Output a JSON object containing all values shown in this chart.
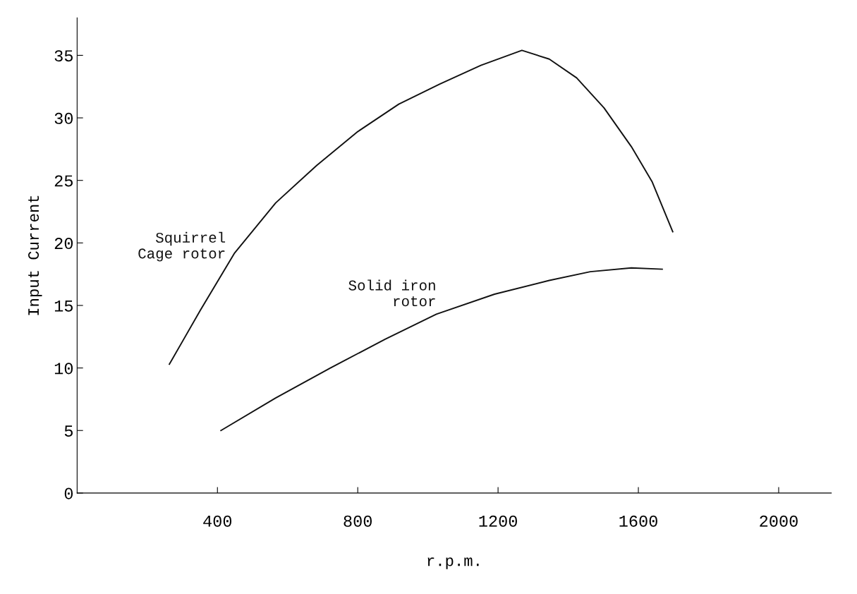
{
  "chart_data": {
    "type": "line",
    "xlabel": "r.p.m.",
    "ylabel": "Input Current",
    "series": [
      {
        "name": "Squirrel\nCage rotor",
        "color": "#111111",
        "x": [
          263,
          351,
          449,
          566,
          683,
          800,
          917,
          1034,
          1151,
          1268,
          1346,
          1424,
          1502,
          1580,
          1639,
          1698
        ],
        "values": [
          10.3,
          14.6,
          19.2,
          23.2,
          26.2,
          28.9,
          31.1,
          32.7,
          34.2,
          35.4,
          34.7,
          33.2,
          30.8,
          27.7,
          24.9,
          20.9
        ]
      },
      {
        "name": "Solid iron\nrotor",
        "color": "#111111",
        "x": [
          410,
          566,
          722,
          878,
          1024,
          1190,
          1346,
          1463,
          1580,
          1668
        ],
        "values": [
          5.0,
          7.6,
          10.0,
          12.3,
          14.3,
          15.9,
          17.0,
          17.7,
          18.0,
          17.9
        ]
      }
    ],
    "xlim": [
      0,
      2150
    ],
    "ylim": [
      0,
      38
    ],
    "xticks": [
      400,
      800,
      1200,
      1600,
      2000
    ],
    "yticks": [
      0,
      5,
      10,
      15,
      20,
      25,
      30,
      35
    ],
    "grid": false,
    "legend": false,
    "marker": "none",
    "line_style": "solid"
  }
}
